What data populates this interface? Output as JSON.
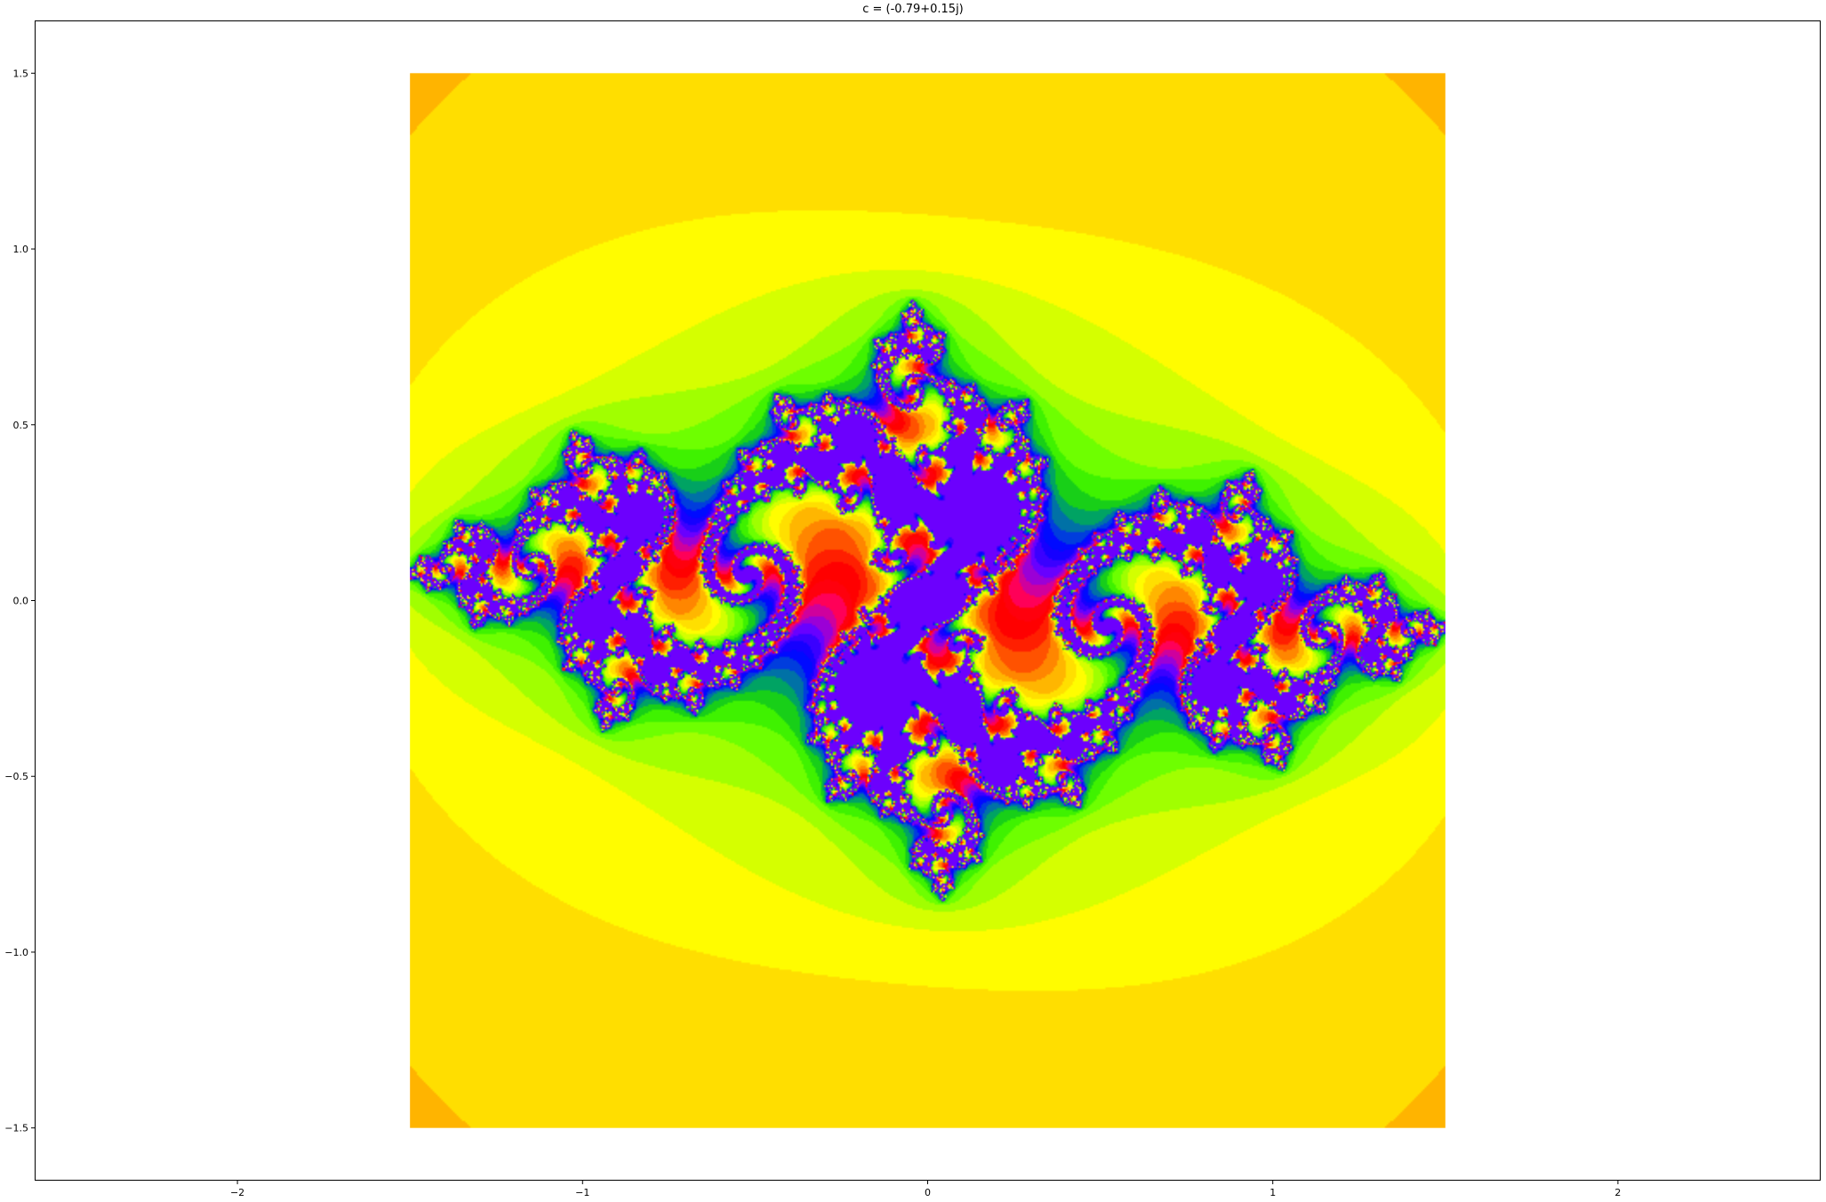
{
  "chart_data": {
    "type": "heatmap",
    "title": "c = (-0.79+0.15j)",
    "subtitle": "",
    "xlabel": "",
    "ylabel": "",
    "julia_constant": {
      "re": -0.79,
      "im": 0.15
    },
    "data_extent": {
      "x": [
        -1.5,
        1.5
      ],
      "y": [
        -1.5,
        1.5
      ]
    },
    "xlim": [
      -2.5875,
      2.5875
    ],
    "ylim": [
      -1.65,
      1.65
    ],
    "x_ticks": [
      -2,
      -1,
      0,
      1,
      2
    ],
    "x_tick_labels": [
      "−2",
      "−1",
      "0",
      "1",
      "2"
    ],
    "y_ticks": [
      1.5,
      1.0,
      0.5,
      0.0,
      -0.5,
      -1.0,
      -1.5
    ],
    "y_tick_labels": [
      "1.5",
      "1.0",
      "0.5",
      "0.0",
      "−0.5",
      "−1.0",
      "−1.5"
    ],
    "grid": false,
    "legend": "none",
    "colormap": "prism",
    "colors": {
      "background": "#ffffff",
      "axes_frame": "#000000",
      "outer_escape": "#b0ff00",
      "corner_escape": "#e6ff00",
      "near_set": "#4dff00",
      "spiral_core": "#ff0000"
    }
  }
}
